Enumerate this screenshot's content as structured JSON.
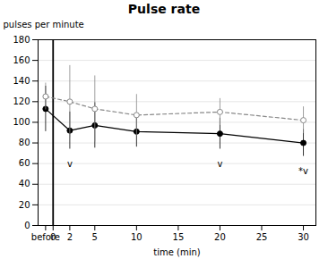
{
  "chart_data": {
    "type": "line",
    "title": "Pulse rate",
    "xlabel": "time (min)",
    "ylabel": "pulses per minute",
    "xlim": [
      -1.8,
      31.5
    ],
    "xticks": [
      {
        "value": -0.9,
        "label": "before"
      },
      0,
      2,
      5,
      10,
      15,
      20,
      25,
      30
    ],
    "ylim": [
      0,
      180
    ],
    "yticks": [
      0,
      20,
      40,
      60,
      80,
      100,
      120,
      140,
      160,
      180
    ],
    "grid": "y",
    "vline_x": 0,
    "x": [
      -0.9,
      2,
      5,
      10,
      20,
      30
    ],
    "series": [
      {
        "color": "#000000",
        "line_style": "solid",
        "marker": "filled circle",
        "values": [
          113,
          92,
          97,
          91,
          89,
          80
        ],
        "errors_low": [
          22,
          18,
          22,
          15,
          15,
          13
        ],
        "errors_high": [
          22,
          18,
          22,
          15,
          15,
          13
        ]
      },
      {
        "color": "#888888",
        "line_style": "dashed",
        "marker": "open circle",
        "values": [
          125,
          120,
          113,
          107,
          110,
          102
        ],
        "errors_low": [
          13,
          35,
          32,
          20,
          13,
          13
        ],
        "errors_high": [
          13,
          35,
          32,
          20,
          13,
          13
        ]
      }
    ],
    "annotations": [
      {
        "x": 2,
        "y": 63,
        "text": "v"
      },
      {
        "x": 20,
        "y": 63,
        "text": "v"
      },
      {
        "x": 30,
        "y": 56,
        "text": "*v"
      }
    ]
  }
}
